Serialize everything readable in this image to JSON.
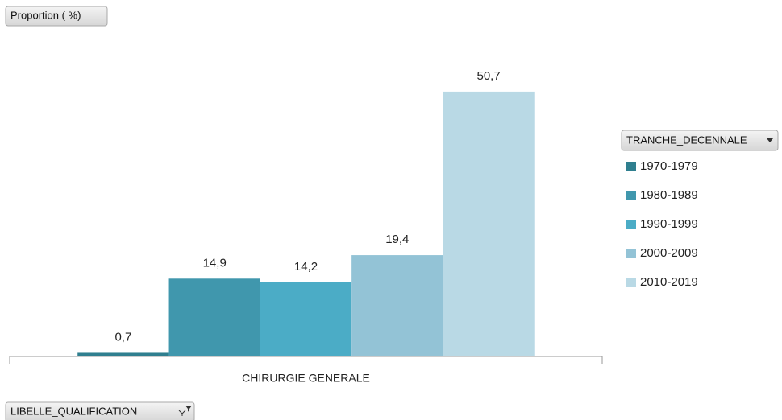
{
  "chart_data": {
    "type": "bar",
    "ylabel": "Proportion ( %)",
    "legend_title": "TRANCHE_DECENNALE",
    "xlabel": "LIBELLE_QUALIFICATION",
    "categories": [
      "CHIRURGIE GENERALE"
    ],
    "ylim": [
      0,
      55
    ],
    "legend": "right",
    "series": [
      {
        "name": "1970-1979",
        "color": "#2f7f8f",
        "values": [
          0.7
        ],
        "value_labels": [
          "0,7"
        ]
      },
      {
        "name": "1980-1989",
        "color": "#4097ad",
        "values": [
          14.9
        ],
        "value_labels": [
          "14,9"
        ]
      },
      {
        "name": "1990-1999",
        "color": "#4bacc6",
        "values": [
          14.2
        ],
        "value_labels": [
          "14,2"
        ]
      },
      {
        "name": "2000-2009",
        "color": "#93c3d6",
        "values": [
          19.4
        ],
        "value_labels": [
          "19,4"
        ]
      },
      {
        "name": "2010-2019",
        "color": "#b9d9e5",
        "values": [
          50.7
        ],
        "value_labels": [
          "50,7"
        ]
      }
    ]
  }
}
